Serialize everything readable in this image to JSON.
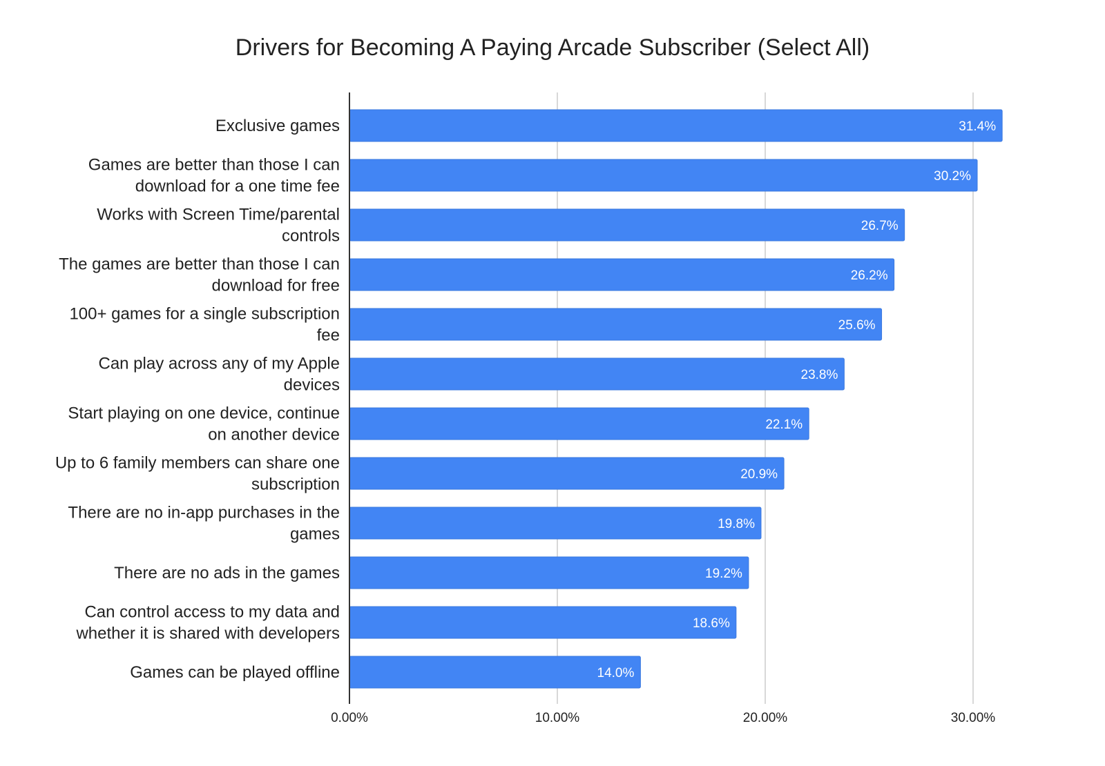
{
  "chart_data": {
    "type": "bar",
    "orientation": "horizontal",
    "title": "Drivers for Becoming A Paying Arcade Subscriber (Select All)",
    "xlabel": "",
    "ylabel": "",
    "categories": [
      [
        "Exclusive games"
      ],
      [
        "Games are better than those I can",
        "download for a one time fee"
      ],
      [
        "Works with Screen Time/parental",
        "controls"
      ],
      [
        "The games are better than those I can",
        "download for free"
      ],
      [
        "100+ games for a single subscription",
        "fee"
      ],
      [
        "Can play across any of my Apple",
        "devices"
      ],
      [
        "Start playing on one device, continue",
        "on another device"
      ],
      [
        "Up to 6 family members can share one",
        "subscription"
      ],
      [
        "There are no in-app purchases in the",
        "games"
      ],
      [
        "There are no ads in the games"
      ],
      [
        "Can control access to my data and",
        "whether it is shared with developers"
      ],
      [
        "Games can be played offline"
      ]
    ],
    "values": [
      31.4,
      30.2,
      26.7,
      26.2,
      25.6,
      23.8,
      22.1,
      20.9,
      19.8,
      19.2,
      18.6,
      14.0
    ],
    "data_labels": [
      "31.4%",
      "30.2%",
      "26.7%",
      "26.2%",
      "25.6%",
      "23.8%",
      "22.1%",
      "20.9%",
      "19.8%",
      "19.2%",
      "18.6%",
      "14.0%"
    ],
    "xlim": [
      0,
      30
    ],
    "ticks": [
      0,
      10,
      20,
      30
    ],
    "tick_labels": [
      "0.00%",
      "10.00%",
      "20.00%",
      "30.00%"
    ],
    "grid": true,
    "legend": "none",
    "colors": {
      "bar": "#4285f4",
      "bar_edge": "#3a78de",
      "grid": "#cccccc",
      "axis": "#333333",
      "text": "#222222",
      "data_label": "#ffffff"
    }
  }
}
